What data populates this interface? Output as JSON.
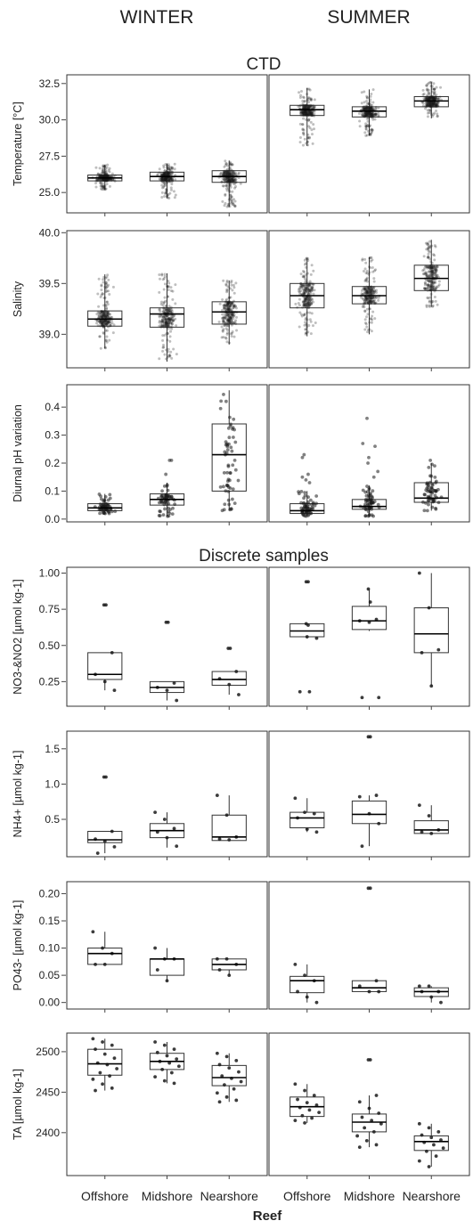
{
  "header": {
    "col_winter": "WINTER",
    "col_summer": "SUMMER",
    "section_ctd": "CTD",
    "section_discrete": "Discrete samples"
  },
  "xaxis": {
    "categories": [
      "Offshore",
      "Midshore",
      "Nearshore"
    ],
    "title": "Reef"
  },
  "colors": {
    "box_fill": "#ffffff",
    "points": "#1a1a1a",
    "frame": "#333333",
    "text": "#222222"
  },
  "chart_data": [
    {
      "id": "temperature",
      "type": "box",
      "ylabel": "Temperature  [°C]",
      "ylim": [
        23.6,
        33.1
      ],
      "yticks": [
        25.0,
        27.5,
        30.0,
        32.5
      ],
      "ytick_labels": [
        "25.0",
        "27.5",
        "30.0",
        "32.5"
      ],
      "dense": true,
      "points_per_box": 260,
      "groups": {
        "winter": [
          {
            "category": "Offshore",
            "q1": 25.8,
            "median": 26.0,
            "q3": 26.2,
            "whisker_low": 25.2,
            "whisker_high": 26.9
          },
          {
            "category": "Midshore",
            "q1": 25.8,
            "median": 26.1,
            "q3": 26.4,
            "whisker_low": 24.6,
            "whisker_high": 27.0
          },
          {
            "category": "Nearshore",
            "q1": 25.7,
            "median": 26.1,
            "q3": 26.5,
            "whisker_low": 24.0,
            "whisker_high": 27.2
          }
        ],
        "summer": [
          {
            "category": "Offshore",
            "q1": 30.3,
            "median": 30.7,
            "q3": 31.0,
            "whisker_low": 28.2,
            "whisker_high": 32.2
          },
          {
            "category": "Midshore",
            "q1": 30.2,
            "median": 30.6,
            "q3": 30.9,
            "whisker_low": 28.9,
            "whisker_high": 32.1
          },
          {
            "category": "Nearshore",
            "q1": 30.9,
            "median": 31.3,
            "q3": 31.6,
            "whisker_low": 30.1,
            "whisker_high": 32.6
          }
        ]
      }
    },
    {
      "id": "salinity",
      "type": "box",
      "ylabel": "Salinity",
      "ylim": [
        38.67,
        40.02
      ],
      "yticks": [
        39.0,
        39.5,
        40.0
      ],
      "ytick_labels": [
        "39.0",
        "39.5",
        "40.0"
      ],
      "dense": true,
      "points_per_box": 240,
      "groups": {
        "winter": [
          {
            "category": "Offshore",
            "q1": 39.08,
            "median": 39.15,
            "q3": 39.23,
            "whisker_low": 38.86,
            "whisker_high": 39.59
          },
          {
            "category": "Midshore",
            "q1": 39.07,
            "median": 39.2,
            "q3": 39.26,
            "whisker_low": 38.73,
            "whisker_high": 39.6
          },
          {
            "category": "Nearshore",
            "q1": 39.1,
            "median": 39.22,
            "q3": 39.32,
            "whisker_low": 38.9,
            "whisker_high": 39.53
          }
        ],
        "summer": [
          {
            "category": "Offshore",
            "q1": 39.26,
            "median": 39.38,
            "q3": 39.5,
            "whisker_low": 38.98,
            "whisker_high": 39.75
          },
          {
            "category": "Midshore",
            "q1": 39.3,
            "median": 39.38,
            "q3": 39.47,
            "whisker_low": 39.0,
            "whisker_high": 39.76
          },
          {
            "category": "Nearshore",
            "q1": 39.43,
            "median": 39.55,
            "q3": 39.68,
            "whisker_low": 39.27,
            "whisker_high": 39.93
          }
        ]
      }
    },
    {
      "id": "ph",
      "type": "box",
      "ylabel": "Diurnal pH variation",
      "ylim": [
        -0.01,
        0.48
      ],
      "yticks": [
        0.0,
        0.1,
        0.2,
        0.3,
        0.4
      ],
      "ytick_labels": [
        "0.0",
        "0.1",
        "0.2",
        "0.3",
        "0.4"
      ],
      "dense": false,
      "points_per_box": 60,
      "groups": {
        "winter": [
          {
            "category": "Offshore",
            "q1": 0.03,
            "median": 0.04,
            "q3": 0.055,
            "whisker_low": 0.02,
            "whisker_high": 0.09
          },
          {
            "category": "Midshore",
            "q1": 0.05,
            "median": 0.07,
            "q3": 0.09,
            "whisker_low": 0.01,
            "whisker_high": 0.13
          },
          {
            "category": "Nearshore",
            "q1": 0.1,
            "median": 0.23,
            "q3": 0.34,
            "whisker_low": 0.03,
            "whisker_high": 0.46
          }
        ],
        "summer": [
          {
            "category": "Offshore",
            "q1": 0.02,
            "median": 0.03,
            "q3": 0.055,
            "whisker_low": 0.01,
            "whisker_high": 0.1
          },
          {
            "category": "Midshore",
            "q1": 0.035,
            "median": 0.045,
            "q3": 0.07,
            "whisker_low": 0.01,
            "whisker_high": 0.12
          },
          {
            "category": "Nearshore",
            "q1": 0.06,
            "median": 0.075,
            "q3": 0.13,
            "whisker_low": 0.03,
            "whisker_high": 0.2
          }
        ]
      },
      "outliers": {
        "winter": [
          [],
          [
            0.21,
            0.21,
            0.16
          ],
          []
        ],
        "summer": [
          [
            0.23,
            0.22,
            0.16,
            0.15,
            0.14,
            0.13
          ],
          [
            0.36,
            0.27,
            0.26,
            0.22,
            0.2,
            0.17,
            0.15
          ],
          [
            0.21,
            0.19
          ]
        ]
      }
    },
    {
      "id": "no3no2",
      "type": "box",
      "ylabel": "NO3-&NO2 [µmol kg-1]",
      "ylim": [
        0.08,
        1.04
      ],
      "yticks": [
        0.25,
        0.5,
        0.75,
        1.0
      ],
      "ytick_labels": [
        "0.25",
        "0.50",
        "0.75",
        "1.00"
      ],
      "dense": false,
      "groups": {
        "winter": [
          {
            "category": "Offshore",
            "q1": 0.265,
            "median": 0.3,
            "q3": 0.45,
            "whisker_low": 0.19,
            "whisker_high": 0.45
          },
          {
            "category": "Midshore",
            "q1": 0.175,
            "median": 0.21,
            "q3": 0.25,
            "whisker_low": 0.12,
            "whisker_high": 0.25
          },
          {
            "category": "Nearshore",
            "q1": 0.225,
            "median": 0.265,
            "q3": 0.32,
            "whisker_low": 0.16,
            "whisker_high": 0.32
          }
        ],
        "summer": [
          {
            "category": "Offshore",
            "q1": 0.56,
            "median": 0.6,
            "q3": 0.65,
            "whisker_low": 0.55,
            "whisker_high": 0.65
          },
          {
            "category": "Midshore",
            "q1": 0.61,
            "median": 0.67,
            "q3": 0.77,
            "whisker_low": 0.6,
            "whisker_high": 0.89
          },
          {
            "category": "Nearshore",
            "q1": 0.45,
            "median": 0.58,
            "q3": 0.76,
            "whisker_low": 0.22,
            "whisker_high": 1.0
          }
        ]
      },
      "points": {
        "winter": [
          [
            0.78,
            0.78,
            0.45,
            0.3,
            0.25,
            0.19
          ],
          [
            0.66,
            0.66,
            0.24,
            0.21,
            0.19,
            0.12
          ],
          [
            0.48,
            0.48,
            0.32,
            0.27,
            0.23,
            0.16
          ]
        ],
        "summer": [
          [
            0.94,
            0.94,
            0.65,
            0.64,
            0.56,
            0.55,
            0.18,
            0.18
          ],
          [
            0.89,
            0.8,
            0.68,
            0.67,
            0.66,
            0.14,
            0.14
          ],
          [
            1.0,
            0.76,
            0.47,
            0.45,
            0.22
          ]
        ]
      },
      "outlier_counts": {
        "winter": [
          2,
          2,
          2
        ],
        "summer": [
          4,
          2,
          0
        ]
      }
    },
    {
      "id": "nh4",
      "type": "box",
      "ylabel": "NH4+ [µmol kg-1]",
      "ylim": [
        -0.03,
        1.75
      ],
      "yticks": [
        0.5,
        1.0,
        1.5
      ],
      "ytick_labels": [
        "0.5",
        "1.0",
        "1.5"
      ],
      "dense": false,
      "groups": {
        "winter": [
          {
            "category": "Offshore",
            "q1": 0.17,
            "median": 0.21,
            "q3": 0.33,
            "whisker_low": 0.02,
            "whisker_high": 0.33
          },
          {
            "category": "Midshore",
            "q1": 0.24,
            "median": 0.34,
            "q3": 0.44,
            "whisker_low": 0.1,
            "whisker_high": 0.6
          },
          {
            "category": "Nearshore",
            "q1": 0.2,
            "median": 0.25,
            "q3": 0.56,
            "whisker_low": 0.2,
            "whisker_high": 0.84
          }
        ],
        "summer": [
          {
            "category": "Offshore",
            "q1": 0.38,
            "median": 0.52,
            "q3": 0.6,
            "whisker_low": 0.32,
            "whisker_high": 0.8
          },
          {
            "category": "Midshore",
            "q1": 0.44,
            "median": 0.57,
            "q3": 0.76,
            "whisker_low": 0.12,
            "whisker_high": 0.84
          },
          {
            "category": "Nearshore",
            "q1": 0.3,
            "median": 0.35,
            "q3": 0.48,
            "whisker_low": 0.3,
            "whisker_high": 0.7
          }
        ]
      },
      "points": {
        "winter": [
          [
            1.1,
            1.1,
            0.33,
            0.22,
            0.19,
            0.11,
            0.02
          ],
          [
            0.6,
            0.5,
            0.37,
            0.32,
            0.24,
            0.12
          ],
          [
            0.84,
            0.56,
            0.25,
            0.22,
            0.21
          ]
        ],
        "summer": [
          [
            0.8,
            0.6,
            0.58,
            0.52,
            0.36,
            0.32
          ],
          [
            1.67,
            1.67,
            0.84,
            0.82,
            0.58,
            0.44,
            0.12
          ],
          [
            0.7,
            0.55,
            0.35,
            0.32,
            0.3
          ]
        ]
      },
      "outlier_counts": {
        "winter": [
          2,
          0,
          0
        ],
        "summer": [
          0,
          2,
          0
        ]
      }
    },
    {
      "id": "po4",
      "type": "box",
      "ylabel": "PO43- [µmol kg-1]",
      "ylim": [
        -0.012,
        0.222
      ],
      "yticks": [
        0.0,
        0.05,
        0.1,
        0.15,
        0.2
      ],
      "ytick_labels": [
        "0.00",
        "0.05",
        "0.10",
        "0.15",
        "0.20"
      ],
      "dense": false,
      "groups": {
        "winter": [
          {
            "category": "Offshore",
            "q1": 0.07,
            "median": 0.09,
            "q3": 0.1,
            "whisker_low": 0.07,
            "whisker_high": 0.13
          },
          {
            "category": "Midshore",
            "q1": 0.05,
            "median": 0.08,
            "q3": 0.08,
            "whisker_low": 0.04,
            "whisker_high": 0.1
          },
          {
            "category": "Nearshore",
            "q1": 0.06,
            "median": 0.07,
            "q3": 0.08,
            "whisker_low": 0.05,
            "whisker_high": 0.08
          }
        ],
        "summer": [
          {
            "category": "Offshore",
            "q1": 0.018,
            "median": 0.04,
            "q3": 0.048,
            "whisker_low": 0.0,
            "whisker_high": 0.07
          },
          {
            "category": "Midshore",
            "q1": 0.02,
            "median": 0.027,
            "q3": 0.04,
            "whisker_low": 0.02,
            "whisker_high": 0.04
          },
          {
            "category": "Nearshore",
            "q1": 0.011,
            "median": 0.02,
            "q3": 0.027,
            "whisker_low": 0.0,
            "whisker_high": 0.03
          }
        ]
      },
      "points": {
        "winter": [
          [
            0.13,
            0.1,
            0.09,
            0.07,
            0.07
          ],
          [
            0.1,
            0.08,
            0.08,
            0.06,
            0.04
          ],
          [
            0.08,
            0.08,
            0.07,
            0.06,
            0.05
          ]
        ],
        "summer": [
          [
            0.07,
            0.05,
            0.04,
            0.02,
            0.01,
            0.0
          ],
          [
            0.21,
            0.21,
            0.04,
            0.03,
            0.02,
            0.02
          ],
          [
            0.03,
            0.03,
            0.02,
            0.02,
            0.01,
            0.0
          ]
        ]
      },
      "outlier_counts": {
        "winter": [
          0,
          0,
          0
        ],
        "summer": [
          0,
          2,
          0
        ]
      }
    },
    {
      "id": "ta",
      "type": "box",
      "ylabel": "TA [µmol kg-1]",
      "ylim": [
        2347,
        2523
      ],
      "yticks": [
        2400,
        2450,
        2500
      ],
      "ytick_labels": [
        "2400",
        "2450",
        "2500"
      ],
      "dense": false,
      "groups": {
        "winter": [
          {
            "category": "Offshore",
            "q1": 2471,
            "median": 2485,
            "q3": 2503,
            "whisker_low": 2452,
            "whisker_high": 2516
          },
          {
            "category": "Midshore",
            "q1": 2478,
            "median": 2488,
            "q3": 2498,
            "whisker_low": 2461,
            "whisker_high": 2512
          },
          {
            "category": "Nearshore",
            "q1": 2458,
            "median": 2468,
            "q3": 2483,
            "whisker_low": 2438,
            "whisker_high": 2498
          }
        ],
        "summer": [
          {
            "category": "Offshore",
            "q1": 2420,
            "median": 2432,
            "q3": 2444,
            "whisker_low": 2412,
            "whisker_high": 2460
          },
          {
            "category": "Midshore",
            "q1": 2401,
            "median": 2413,
            "q3": 2423,
            "whisker_low": 2382,
            "whisker_high": 2446
          },
          {
            "category": "Nearshore",
            "q1": 2378,
            "median": 2389,
            "q3": 2396,
            "whisker_low": 2358,
            "whisker_high": 2411
          }
        ]
      },
      "points": {
        "winter": [
          [
            2516,
            2512,
            2508,
            2503,
            2497,
            2492,
            2486,
            2484,
            2479,
            2474,
            2470,
            2466,
            2460,
            2455,
            2452
          ],
          [
            2512,
            2508,
            2503,
            2499,
            2495,
            2491,
            2488,
            2486,
            2482,
            2478,
            2474,
            2469,
            2464,
            2461
          ],
          [
            2498,
            2494,
            2489,
            2484,
            2480,
            2475,
            2470,
            2467,
            2463,
            2459,
            2454,
            2449,
            2444,
            2440,
            2438
          ]
        ],
        "summer": [
          [
            2460,
            2452,
            2446,
            2441,
            2437,
            2434,
            2431,
            2428,
            2425,
            2421,
            2418,
            2415,
            2412
          ],
          [
            2490,
            2490,
            2446,
            2438,
            2430,
            2424,
            2419,
            2415,
            2411,
            2406,
            2401,
            2396,
            2390,
            2385,
            2382
          ],
          [
            2411,
            2406,
            2401,
            2397,
            2394,
            2391,
            2388,
            2385,
            2381,
            2377,
            2371,
            2365,
            2358
          ]
        ]
      },
      "outlier_counts": {
        "winter": [
          0,
          0,
          0
        ],
        "summer": [
          0,
          2,
          0
        ]
      }
    }
  ]
}
